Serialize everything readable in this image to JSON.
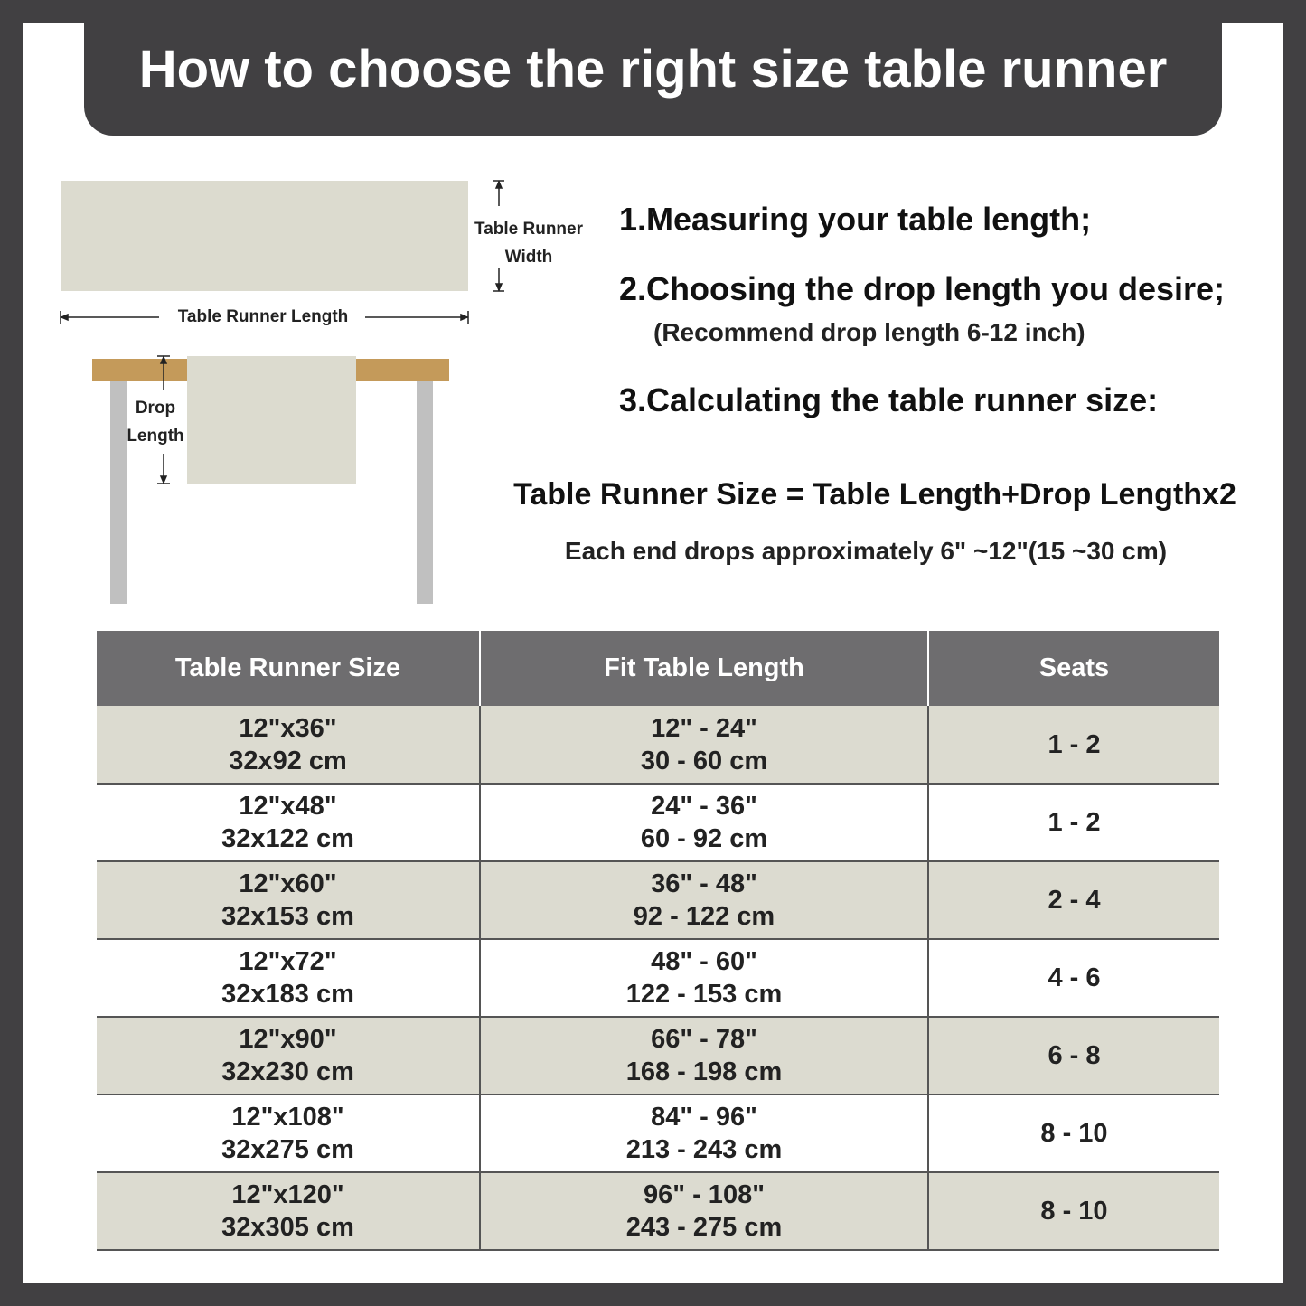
{
  "title": "How to choose the right size table runner",
  "diagram": {
    "width_label_1": "Table Runner",
    "width_label_2": "Width",
    "length_label": "Table Runner Length",
    "drop_label_1": "Drop",
    "drop_label_2": "Length",
    "colors": {
      "runner": "#dcdbcf",
      "tabletop": "#c49a5a",
      "legs": "#c0c0c0"
    }
  },
  "steps": [
    "1.Measuring your table length;",
    "2.Choosing the drop length you desire;",
    "(Recommend drop length 6-12 inch)",
    "3.Calculating the table runner size:"
  ],
  "formula": "Table Runner Size = Table Length+Drop Lengthx2",
  "note": "Each end drops approximately 6\" ~12\"(15 ~30 cm)",
  "table": {
    "headers": [
      "Table Runner Size",
      "Fit Table Length",
      "Seats"
    ],
    "rows": [
      {
        "size_in": "12\"x36\"",
        "size_cm": "32x92 cm",
        "len_in": "12\" - 24\"",
        "len_cm": "30 - 60 cm",
        "seats": "1 - 2"
      },
      {
        "size_in": "12\"x48\"",
        "size_cm": "32x122 cm",
        "len_in": "24\" - 36\"",
        "len_cm": "60 - 92 cm",
        "seats": "1 - 2"
      },
      {
        "size_in": "12\"x60\"",
        "size_cm": "32x153 cm",
        "len_in": "36\" - 48\"",
        "len_cm": "92 - 122 cm",
        "seats": "2 - 4"
      },
      {
        "size_in": "12\"x72\"",
        "size_cm": "32x183 cm",
        "len_in": "48\" - 60\"",
        "len_cm": "122 - 153 cm",
        "seats": "4 - 6"
      },
      {
        "size_in": "12\"x90\"",
        "size_cm": "32x230 cm",
        "len_in": "66\" - 78\"",
        "len_cm": "168 - 198 cm",
        "seats": "6 - 8"
      },
      {
        "size_in": "12\"x108\"",
        "size_cm": "32x275 cm",
        "len_in": "84\" - 96\"",
        "len_cm": "213 - 243 cm",
        "seats": "8 - 10"
      },
      {
        "size_in": "12\"x120\"",
        "size_cm": "32x305 cm",
        "len_in": "96\" - 108\"",
        "len_cm": "243 - 275 cm",
        "seats": "8 - 10"
      }
    ]
  }
}
